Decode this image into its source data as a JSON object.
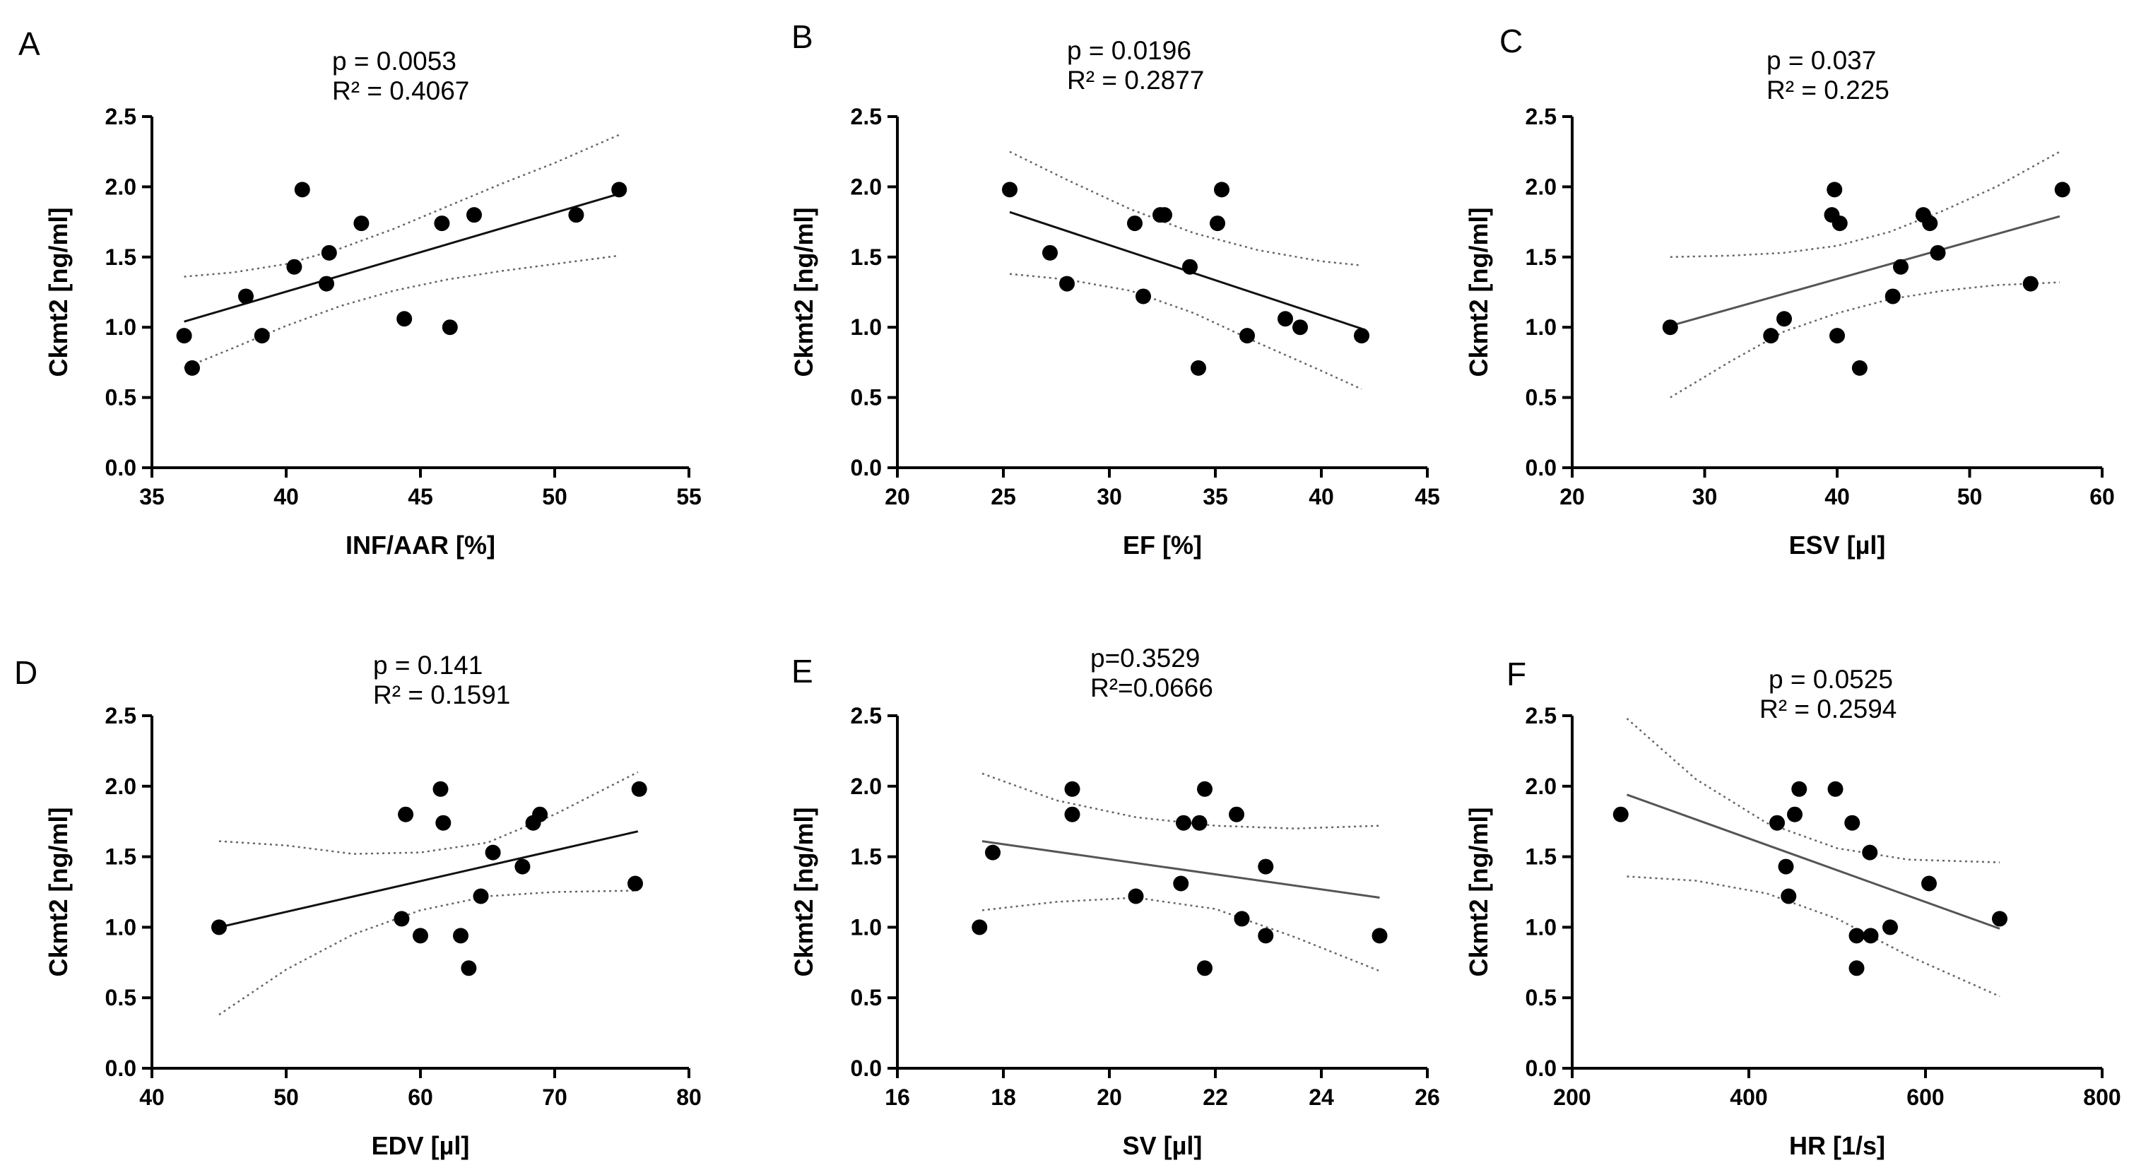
{
  "figure": {
    "panels": [
      {
        "letter": "A",
        "p_text": "p = 0.0053",
        "r2_text": "R² = 0.4067"
      },
      {
        "letter": "B",
        "p_text": "p = 0.0196",
        "r2_text": "R² = 0.2877"
      },
      {
        "letter": "C",
        "p_text": "p = 0.037",
        "r2_text": "R² = 0.225"
      },
      {
        "letter": "D",
        "p_text": "p = 0.141",
        "r2_text": "R² = 0.1591"
      },
      {
        "letter": "E",
        "p_text": "p=0.3529",
        "r2_text": "R²=0.0666"
      },
      {
        "letter": "F",
        "p_text": "p = 0.0525",
        "r2_text": "R² = 0.2594"
      }
    ]
  },
  "chart_data": [
    {
      "type": "scatter",
      "panel": "A",
      "xlabel": "INF/AAR [%]",
      "ylabel": "Ckmt2 [ng/ml]",
      "xlim": [
        35,
        55
      ],
      "ylim": [
        0,
        2.5
      ],
      "xticks": [
        "35",
        "40",
        "45",
        "50",
        "55"
      ],
      "yticks": [
        "0.0",
        "0.5",
        "1.0",
        "1.5",
        "2.0",
        "2.5"
      ],
      "points": [
        [
          36.2,
          0.94
        ],
        [
          36.5,
          0.71
        ],
        [
          38.5,
          1.22
        ],
        [
          39.1,
          0.94
        ],
        [
          40.3,
          1.43
        ],
        [
          40.6,
          1.98
        ],
        [
          41.5,
          1.31
        ],
        [
          41.6,
          1.53
        ],
        [
          42.8,
          1.74
        ],
        [
          44.4,
          1.06
        ],
        [
          45.8,
          1.74
        ],
        [
          46.1,
          1.0
        ],
        [
          47.0,
          1.8
        ],
        [
          50.8,
          1.8
        ],
        [
          52.4,
          1.98
        ]
      ],
      "fit": {
        "x": [
          36.2,
          52.4
        ],
        "y": [
          1.04,
          1.95
        ]
      },
      "ci_upper": {
        "x": [
          36.2,
          38,
          40,
          42,
          44,
          46,
          48,
          50,
          52.4
        ],
        "y": [
          1.36,
          1.39,
          1.45,
          1.56,
          1.7,
          1.86,
          2.02,
          2.17,
          2.37
        ]
      },
      "ci_lower": {
        "x": [
          36.2,
          38,
          40,
          42,
          44,
          46,
          48,
          50,
          52.4
        ],
        "y": [
          0.71,
          0.85,
          1.01,
          1.15,
          1.26,
          1.34,
          1.4,
          1.45,
          1.51
        ]
      },
      "line_color": "#111111"
    },
    {
      "type": "scatter",
      "panel": "B",
      "xlabel": "EF [%]",
      "ylabel": "Ckmt2 [ng/ml]",
      "xlim": [
        20,
        45
      ],
      "ylim": [
        0,
        2.5
      ],
      "xticks": [
        "20",
        "25",
        "30",
        "35",
        "40",
        "45"
      ],
      "yticks": [
        "0.0",
        "0.5",
        "1.0",
        "1.5",
        "2.0",
        "2.5"
      ],
      "points": [
        [
          25.3,
          1.98
        ],
        [
          27.2,
          1.53
        ],
        [
          28.0,
          1.31
        ],
        [
          31.2,
          1.74
        ],
        [
          31.6,
          1.22
        ],
        [
          32.4,
          1.8
        ],
        [
          32.6,
          1.8
        ],
        [
          33.8,
          1.43
        ],
        [
          34.2,
          0.71
        ],
        [
          35.1,
          1.74
        ],
        [
          35.3,
          1.98
        ],
        [
          36.5,
          0.94
        ],
        [
          38.3,
          1.06
        ],
        [
          39.0,
          1.0
        ],
        [
          41.9,
          0.94
        ]
      ],
      "fit": {
        "x": [
          25.3,
          41.9
        ],
        "y": [
          1.82,
          0.99
        ]
      },
      "ci_upper": {
        "x": [
          25.3,
          28,
          31,
          34,
          37,
          40,
          41.9
        ],
        "y": [
          2.25,
          2.05,
          1.84,
          1.67,
          1.55,
          1.47,
          1.44
        ]
      },
      "ci_lower": {
        "x": [
          25.3,
          28,
          31,
          34,
          37,
          40,
          41.9
        ],
        "y": [
          1.38,
          1.34,
          1.26,
          1.1,
          0.89,
          0.69,
          0.56
        ]
      },
      "line_color": "#111111"
    },
    {
      "type": "scatter",
      "panel": "C",
      "xlabel": "ESV [µl]",
      "ylabel": "Ckmt2 [ng/ml]",
      "xlim": [
        20,
        60
      ],
      "ylim": [
        0,
        2.5
      ],
      "xticks": [
        "20",
        "30",
        "40",
        "50",
        "60"
      ],
      "yticks": [
        "0.0",
        "0.5",
        "1.0",
        "1.5",
        "2.0",
        "2.5"
      ],
      "points": [
        [
          27.4,
          1.0
        ],
        [
          35.0,
          0.94
        ],
        [
          36.0,
          1.06
        ],
        [
          39.6,
          1.8
        ],
        [
          39.8,
          1.98
        ],
        [
          40.0,
          0.94
        ],
        [
          40.2,
          1.74
        ],
        [
          41.7,
          0.71
        ],
        [
          44.2,
          1.22
        ],
        [
          44.8,
          1.43
        ],
        [
          46.5,
          1.8
        ],
        [
          47.0,
          1.74
        ],
        [
          47.6,
          1.53
        ],
        [
          54.6,
          1.31
        ],
        [
          57.0,
          1.98
        ]
      ],
      "fit": {
        "x": [
          27.4,
          56.8
        ],
        "y": [
          1.01,
          1.79
        ]
      },
      "ci_upper": {
        "x": [
          27.4,
          32,
          36,
          40,
          44,
          48,
          52,
          56.8
        ],
        "y": [
          1.5,
          1.51,
          1.53,
          1.58,
          1.68,
          1.83,
          2.0,
          2.25
        ]
      },
      "ci_lower": {
        "x": [
          27.4,
          32,
          36,
          40,
          44,
          48,
          52,
          56.8
        ],
        "y": [
          0.5,
          0.76,
          0.97,
          1.1,
          1.2,
          1.26,
          1.3,
          1.32
        ]
      },
      "line_color": "#555555"
    },
    {
      "type": "scatter",
      "panel": "D",
      "xlabel": "EDV [µl]",
      "ylabel": "Ckmt2 [ng/ml]",
      "xlim": [
        40,
        80
      ],
      "ylim": [
        0,
        2.5
      ],
      "xticks": [
        "40",
        "50",
        "60",
        "70",
        "80"
      ],
      "yticks": [
        "0.0",
        "0.5",
        "1.0",
        "1.5",
        "2.0",
        "2.5"
      ],
      "points": [
        [
          45.0,
          1.0
        ],
        [
          58.6,
          1.06
        ],
        [
          58.9,
          1.8
        ],
        [
          60.0,
          0.94
        ],
        [
          61.5,
          1.98
        ],
        [
          61.7,
          1.74
        ],
        [
          63.0,
          0.94
        ],
        [
          63.6,
          0.71
        ],
        [
          64.5,
          1.22
        ],
        [
          65.4,
          1.53
        ],
        [
          67.6,
          1.43
        ],
        [
          68.4,
          1.74
        ],
        [
          68.9,
          1.8
        ],
        [
          76.0,
          1.31
        ],
        [
          76.3,
          1.98
        ]
      ],
      "fit": {
        "x": [
          45.0,
          76.2
        ],
        "y": [
          1.0,
          1.68
        ]
      },
      "ci_upper": {
        "x": [
          45,
          50,
          55,
          60,
          65,
          70,
          76.2
        ],
        "y": [
          1.61,
          1.58,
          1.52,
          1.53,
          1.6,
          1.8,
          2.1
        ]
      },
      "ci_lower": {
        "x": [
          45,
          50,
          55,
          60,
          65,
          70,
          76.2
        ],
        "y": [
          0.38,
          0.7,
          0.95,
          1.12,
          1.22,
          1.25,
          1.26
        ]
      },
      "line_color": "#111111"
    },
    {
      "type": "scatter",
      "panel": "E",
      "xlabel": "SV [µl]",
      "ylabel": "Ckmt2 [ng/ml]",
      "xlim": [
        16,
        26
      ],
      "ylim": [
        0,
        2.5
      ],
      "xticks": [
        "16",
        "18",
        "20",
        "22",
        "24",
        "26"
      ],
      "yticks": [
        "0.0",
        "0.5",
        "1.0",
        "1.5",
        "2.0",
        "2.5"
      ],
      "points": [
        [
          17.55,
          1.0
        ],
        [
          17.8,
          1.53
        ],
        [
          19.3,
          1.98
        ],
        [
          19.3,
          1.8
        ],
        [
          20.5,
          1.22
        ],
        [
          21.35,
          1.31
        ],
        [
          21.4,
          1.74
        ],
        [
          21.7,
          1.74
        ],
        [
          21.8,
          1.98
        ],
        [
          21.8,
          0.71
        ],
        [
          22.4,
          1.8
        ],
        [
          22.5,
          1.06
        ],
        [
          22.95,
          1.43
        ],
        [
          22.95,
          0.94
        ],
        [
          25.1,
          0.94
        ]
      ],
      "fit": {
        "x": [
          17.6,
          25.1
        ],
        "y": [
          1.61,
          1.21
        ]
      },
      "ci_upper": {
        "x": [
          17.6,
          19,
          20.5,
          22,
          23.5,
          25.1
        ],
        "y": [
          2.09,
          1.9,
          1.78,
          1.72,
          1.7,
          1.72
        ]
      },
      "ci_lower": {
        "x": [
          17.6,
          19,
          20.5,
          22,
          23.5,
          25.1
        ],
        "y": [
          1.12,
          1.18,
          1.21,
          1.13,
          0.93,
          0.69
        ]
      },
      "line_color": "#555555"
    },
    {
      "type": "scatter",
      "panel": "F",
      "xlabel": "HR [1/s]",
      "ylabel": "Ckmt2 [ng/ml]",
      "xlim": [
        200,
        800
      ],
      "ylim": [
        0,
        2.5
      ],
      "xticks": [
        "200",
        "400",
        "600",
        "800"
      ],
      "yticks": [
        "0.0",
        "0.5",
        "1.0",
        "1.5",
        "2.0",
        "2.5"
      ],
      "points": [
        [
          255,
          1.8
        ],
        [
          432,
          1.74
        ],
        [
          442,
          1.43
        ],
        [
          445,
          1.22
        ],
        [
          452,
          1.8
        ],
        [
          457,
          1.98
        ],
        [
          498,
          1.98
        ],
        [
          517,
          1.74
        ],
        [
          522,
          0.94
        ],
        [
          522,
          0.71
        ],
        [
          537,
          1.53
        ],
        [
          538,
          0.94
        ],
        [
          560,
          1.0
        ],
        [
          604,
          1.31
        ],
        [
          684,
          1.06
        ]
      ],
      "fit": {
        "x": [
          262,
          684
        ],
        "y": [
          1.94,
          0.99
        ]
      },
      "ci_upper": {
        "x": [
          262,
          340,
          420,
          500,
          580,
          684
        ],
        "y": [
          2.48,
          2.05,
          1.74,
          1.56,
          1.48,
          1.46
        ]
      },
      "ci_lower": {
        "x": [
          262,
          340,
          420,
          500,
          580,
          684
        ],
        "y": [
          1.36,
          1.33,
          1.24,
          1.06,
          0.8,
          0.51
        ]
      },
      "line_color": "#555555"
    }
  ]
}
